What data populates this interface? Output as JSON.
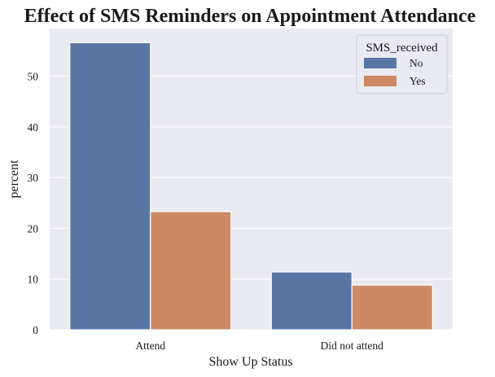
{
  "chart_data": {
    "type": "bar",
    "title": "Effect of SMS Reminders on Appointment Attendance",
    "xlabel": "Show Up Status",
    "ylabel": "percent",
    "categories": [
      "Attend",
      "Did not attend"
    ],
    "series": [
      {
        "name": "No",
        "values": [
          56.6,
          11.4
        ],
        "color": "#5975a4"
      },
      {
        "name": "Yes",
        "values": [
          23.3,
          8.8
        ],
        "color": "#cc8963"
      }
    ],
    "ylim": [
      0,
      59.4
    ],
    "yticks": [
      0,
      10,
      20,
      30,
      40,
      50
    ],
    "grid": true,
    "legend": {
      "title": "SMS_received",
      "placement": "top-right"
    },
    "colors": {
      "plot_background": "#eaeaf2",
      "grid": "#ffffff"
    }
  }
}
